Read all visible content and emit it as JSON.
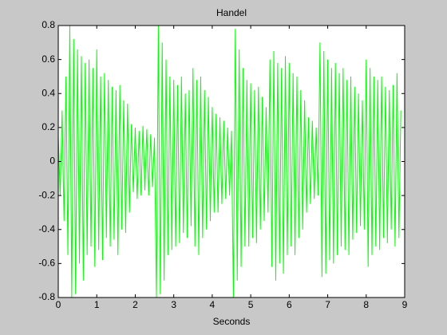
{
  "chart_data": {
    "type": "line",
    "title": "Handel",
    "x_label": "Seconds",
    "color": "#00ff00",
    "grid": false,
    "xlim": [
      0,
      9
    ],
    "xticks": [
      0,
      1,
      2,
      3,
      4,
      5,
      6,
      7,
      8,
      9
    ],
    "ylim": [
      -0.8,
      0.8
    ],
    "yticks": [
      -0.8,
      -0.6,
      -0.4,
      -0.2,
      0,
      0.2,
      0.4,
      0.6,
      0.8
    ],
    "x": [
      0,
      0.05,
      0.1,
      0.15,
      0.2,
      0.25,
      0.3,
      0.35,
      0.4,
      0.45,
      0.5,
      0.55,
      0.6,
      0.65,
      0.7,
      0.75,
      0.8,
      0.85,
      0.9,
      0.95,
      1,
      1.05,
      1.1,
      1.15,
      1.2,
      1.25,
      1.3,
      1.35,
      1.4,
      1.45,
      1.5,
      1.55,
      1.6,
      1.65,
      1.7,
      1.75,
      1.8,
      1.85,
      1.9,
      1.95,
      2,
      2.05,
      2.1,
      2.15,
      2.2,
      2.25,
      2.3,
      2.35,
      2.4,
      2.45,
      2.5,
      2.55,
      2.6,
      2.65,
      2.7,
      2.75,
      2.8,
      2.85,
      2.9,
      2.95,
      3,
      3.05,
      3.1,
      3.15,
      3.2,
      3.25,
      3.3,
      3.35,
      3.4,
      3.45,
      3.5,
      3.55,
      3.6,
      3.65,
      3.7,
      3.75,
      3.8,
      3.85,
      3.9,
      3.95,
      4,
      4.05,
      4.1,
      4.15,
      4.2,
      4.25,
      4.3,
      4.35,
      4.4,
      4.45,
      4.5,
      4.55,
      4.6,
      4.65,
      4.7,
      4.75,
      4.8,
      4.85,
      4.9,
      4.95,
      5,
      5.05,
      5.1,
      5.15,
      5.2,
      5.25,
      5.3,
      5.35,
      5.4,
      5.45,
      5.5,
      5.55,
      5.6,
      5.65,
      5.7,
      5.75,
      5.8,
      5.85,
      5.9,
      5.95,
      6,
      6.05,
      6.1,
      6.15,
      6.2,
      6.25,
      6.3,
      6.35,
      6.4,
      6.45,
      6.5,
      6.55,
      6.6,
      6.65,
      6.7,
      6.75,
      6.8,
      6.85,
      6.9,
      6.95,
      7,
      7.05,
      7.1,
      7.15,
      7.2,
      7.25,
      7.3,
      7.35,
      7.4,
      7.45,
      7.5,
      7.55,
      7.6,
      7.65,
      7.7,
      7.75,
      7.8,
      7.85,
      7.9,
      7.95,
      8,
      8.05,
      8.1,
      8.15,
      8.2,
      8.25,
      8.3,
      8.35,
      8.4,
      8.45,
      8.5,
      8.55,
      8.6,
      8.65,
      8.7,
      8.75,
      8.8,
      8.85,
      8.9
    ],
    "values": [
      0.15,
      -0.2,
      0.3,
      -0.35,
      0.5,
      -0.55,
      0.8,
      -0.8,
      0.72,
      -0.78,
      0.66,
      -0.6,
      0.62,
      -0.7,
      0.58,
      -0.55,
      0.6,
      -0.5,
      0.55,
      -0.62,
      0.66,
      -0.52,
      0.5,
      -0.58,
      0.52,
      -0.45,
      0.48,
      -0.5,
      0.44,
      -0.46,
      0.42,
      -0.55,
      0.45,
      -0.4,
      0.36,
      -0.42,
      0.34,
      -0.3,
      0.22,
      -0.18,
      0.2,
      -0.22,
      0.18,
      -0.2,
      0.21,
      -0.17,
      0.19,
      -0.2,
      0.16,
      -0.15,
      0.14,
      -0.8,
      0.8,
      -0.78,
      0.7,
      -0.7,
      0.6,
      -0.55,
      0.5,
      -0.52,
      0.48,
      -0.5,
      0.45,
      -0.48,
      0.5,
      -0.42,
      0.4,
      -0.45,
      0.42,
      -0.38,
      0.55,
      -0.5,
      0.48,
      -0.55,
      0.5,
      -0.45,
      0.42,
      -0.4,
      0.38,
      -0.35,
      0.32,
      -0.3,
      0.28,
      -0.3,
      0.26,
      -0.25,
      0.24,
      -0.22,
      0.2,
      -0.2,
      0.18,
      -0.8,
      0.78,
      -0.7,
      0.66,
      -0.62,
      0.55,
      -0.5,
      0.48,
      -0.5,
      0.46,
      -0.45,
      0.42,
      -0.48,
      0.44,
      -0.4,
      0.38,
      -0.35,
      0.32,
      -0.3,
      0.6,
      -0.62,
      0.65,
      -0.7,
      0.58,
      -0.6,
      0.55,
      -0.66,
      0.62,
      -0.55,
      0.58,
      -0.5,
      0.52,
      -0.55,
      0.5,
      -0.45,
      0.42,
      -0.4,
      0.36,
      -0.3,
      0.26,
      -0.25,
      0.24,
      -0.22,
      0.2,
      -0.2,
      0.7,
      -0.68,
      0.65,
      -0.66,
      0.6,
      -0.58,
      0.55,
      -0.6,
      0.58,
      -0.55,
      0.52,
      -0.5,
      0.55,
      -0.52,
      0.48,
      -0.55,
      0.5,
      -0.46,
      0.44,
      -0.42,
      0.4,
      -0.38,
      0.36,
      -0.4,
      0.6,
      -0.62,
      0.55,
      -0.55,
      0.5,
      -0.5,
      0.48,
      -0.52,
      0.5,
      -0.45,
      0.44,
      -0.48,
      0.42,
      -0.4,
      0.45,
      -0.5,
      0.52,
      -0.45,
      0.3
    ]
  }
}
